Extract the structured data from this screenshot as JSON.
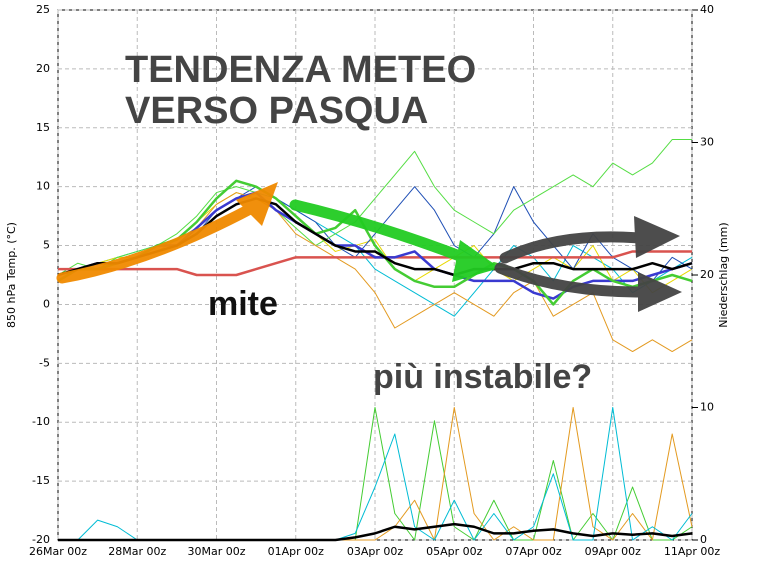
{
  "chart_data": {
    "type": "line",
    "title": [
      "TENDENZA METEO",
      "VERSO PASQUA"
    ],
    "annotations": [
      "mite",
      "più instabile?"
    ],
    "ylabel": "850 hPa Temp. (°C)",
    "y2label": "Niederschlag (mm)",
    "x": [
      0,
      0.5,
      1,
      1.5,
      2,
      2.5,
      3,
      3.5,
      4,
      4.5,
      5,
      5.5,
      6,
      6.5,
      7,
      7.5,
      8,
      8.5,
      9,
      9.5,
      10,
      10.5,
      11,
      11.5,
      12,
      12.5,
      13,
      13.5,
      14,
      14.5,
      15,
      15.5,
      16
    ],
    "xlim": [
      0,
      16
    ],
    "xticks": [
      {
        "value": 0,
        "label": "26Mar 00z"
      },
      {
        "value": 2,
        "label": "28Mar 00z"
      },
      {
        "value": 4,
        "label": "30Mar 00z"
      },
      {
        "value": 6,
        "label": "01Apr 00z"
      },
      {
        "value": 8,
        "label": "03Apr 00z"
      },
      {
        "value": 10,
        "label": "05Apr 00z"
      },
      {
        "value": 12,
        "label": "07Apr 00z"
      },
      {
        "value": 14,
        "label": "09Apr 00z"
      },
      {
        "value": 16,
        "label": "11Apr 00z"
      }
    ],
    "ylim": [
      -20,
      25
    ],
    "yticks": [
      -20,
      -15,
      -10,
      -5,
      0,
      5,
      10,
      15,
      20,
      25
    ],
    "y2lim": [
      0,
      40
    ],
    "y2ticks": [
      0,
      10,
      20,
      30,
      40
    ],
    "grid": true,
    "series": [
      {
        "color": "#00bcd4",
        "width": 1,
        "values": [
          2.5,
          3,
          3.5,
          4,
          4.5,
          5,
          5.5,
          6.5,
          8,
          9,
          9.5,
          9,
          8,
          7,
          6,
          5,
          3,
          2,
          1,
          0,
          -1,
          1,
          3,
          5,
          4,
          2,
          5,
          4,
          3,
          1,
          2,
          3,
          4
        ]
      },
      {
        "color": "#e8d800",
        "width": 1,
        "values": [
          2.5,
          3,
          3.5,
          4,
          4,
          5,
          5.5,
          7,
          8.5,
          9.5,
          9,
          8,
          7,
          6,
          4.5,
          5,
          5.5,
          3,
          2,
          3,
          4,
          5,
          3,
          2,
          3,
          4,
          3,
          5,
          2,
          3,
          1,
          2,
          3
        ]
      },
      {
        "color": "#1f4fb5",
        "width": 1,
        "values": [
          2.5,
          3,
          3.5,
          3.5,
          4,
          5,
          5,
          6,
          8,
          9,
          10,
          9,
          8,
          7,
          5,
          4,
          6,
          8,
          10,
          8,
          5,
          4,
          6,
          10,
          7,
          5,
          3,
          6,
          4,
          3,
          2,
          4,
          3
        ]
      },
      {
        "color": "#55dd44",
        "width": 1,
        "values": [
          2.5,
          3.5,
          3,
          4,
          4.5,
          5,
          6,
          7.5,
          9.5,
          10,
          9.5,
          8,
          6.5,
          5,
          6,
          7,
          9,
          11,
          13,
          10,
          8,
          7,
          6,
          8,
          9,
          10,
          11,
          10,
          12,
          11,
          12,
          14,
          14
        ]
      },
      {
        "color": "#e39a20",
        "width": 1,
        "values": [
          2,
          3,
          3.5,
          3.5,
          4,
          4.5,
          5.5,
          6.5,
          8.5,
          9.5,
          9,
          8,
          6,
          5,
          4,
          3,
          1,
          -2,
          -1,
          0,
          1,
          0,
          -1,
          1,
          2,
          -1,
          0,
          1,
          -3,
          -4,
          -3,
          -4,
          -3
        ]
      },
      {
        "color": "#d9534f",
        "width": 2.5,
        "values": [
          3,
          3,
          3,
          3,
          3,
          3,
          3,
          2.5,
          2.5,
          2.5,
          3,
          3.5,
          4,
          4,
          4,
          4,
          4,
          4,
          4,
          4,
          4,
          4,
          4,
          4,
          4,
          4,
          4,
          4,
          4,
          4.5,
          4.5,
          4.5,
          4.5
        ]
      },
      {
        "color": "#3a3ad0",
        "width": 2.5,
        "values": [
          2,
          3,
          3.5,
          3.5,
          4,
          5,
          5,
          6.5,
          8,
          9,
          9.5,
          8,
          7,
          6,
          5,
          5,
          4,
          4,
          4.5,
          3,
          2.5,
          2,
          2,
          2,
          1,
          0.5,
          1.5,
          2,
          2,
          2,
          2.5,
          3,
          3.5
        ]
      },
      {
        "color": "#44cc33",
        "width": 2.5,
        "values": [
          2,
          3,
          3,
          3.5,
          4,
          5,
          5.5,
          7,
          9,
          10.5,
          10,
          9,
          7.5,
          6,
          6.5,
          8,
          5,
          3,
          2,
          1.5,
          1.5,
          2.5,
          3.5,
          3,
          2,
          0,
          2,
          3,
          2,
          1.5,
          2,
          2.5,
          2
        ]
      },
      {
        "color": "#000000",
        "width": 2.5,
        "values": [
          2.5,
          3,
          3.5,
          3.5,
          4,
          4.5,
          5,
          6,
          7.5,
          8.5,
          9,
          8.5,
          7,
          6,
          5,
          4.5,
          4.5,
          3.5,
          3,
          3,
          2.5,
          3,
          3,
          3,
          3.5,
          3.5,
          3,
          3,
          3,
          3,
          3.5,
          3,
          3.5
        ]
      },
      {
        "color": "#44cc33",
        "width": 1,
        "axis": "y2",
        "values": [
          0,
          0,
          0,
          0,
          0,
          0,
          0,
          0,
          0,
          0,
          0,
          0,
          0,
          0,
          0,
          0,
          10,
          2,
          0,
          9,
          1,
          0,
          3,
          0,
          0,
          6,
          0,
          2,
          0,
          4,
          0,
          0,
          1
        ]
      },
      {
        "color": "#e39a20",
        "width": 1,
        "axis": "y2",
        "values": [
          0,
          0,
          0,
          0,
          0,
          0,
          0,
          0,
          0,
          0,
          0,
          0,
          0,
          0,
          0,
          0,
          0,
          1,
          3,
          0,
          10,
          2,
          0,
          1,
          0,
          0,
          10,
          1,
          0,
          2,
          0,
          8,
          1
        ]
      },
      {
        "color": "#00bcd4",
        "width": 1,
        "axis": "y2",
        "values": [
          0,
          0,
          1.5,
          1,
          0,
          0,
          0,
          0,
          0,
          0,
          0,
          0,
          0,
          0,
          0,
          0.5,
          4,
          8,
          1,
          0,
          3,
          0,
          2,
          0,
          1,
          5,
          0,
          0,
          10,
          0,
          1,
          0,
          2
        ]
      },
      {
        "color": "#000000",
        "width": 2.5,
        "axis": "y2",
        "values": [
          0,
          0,
          0,
          0,
          0,
          0,
          0,
          0,
          0,
          0,
          0,
          0,
          0,
          0,
          0,
          0.2,
          0.5,
          1,
          0.8,
          1,
          1.2,
          1,
          0.5,
          0.5,
          0.7,
          0.8,
          0.5,
          0.3,
          0.5,
          0.4,
          0.5,
          0.3,
          0.5
        ]
      }
    ]
  }
}
